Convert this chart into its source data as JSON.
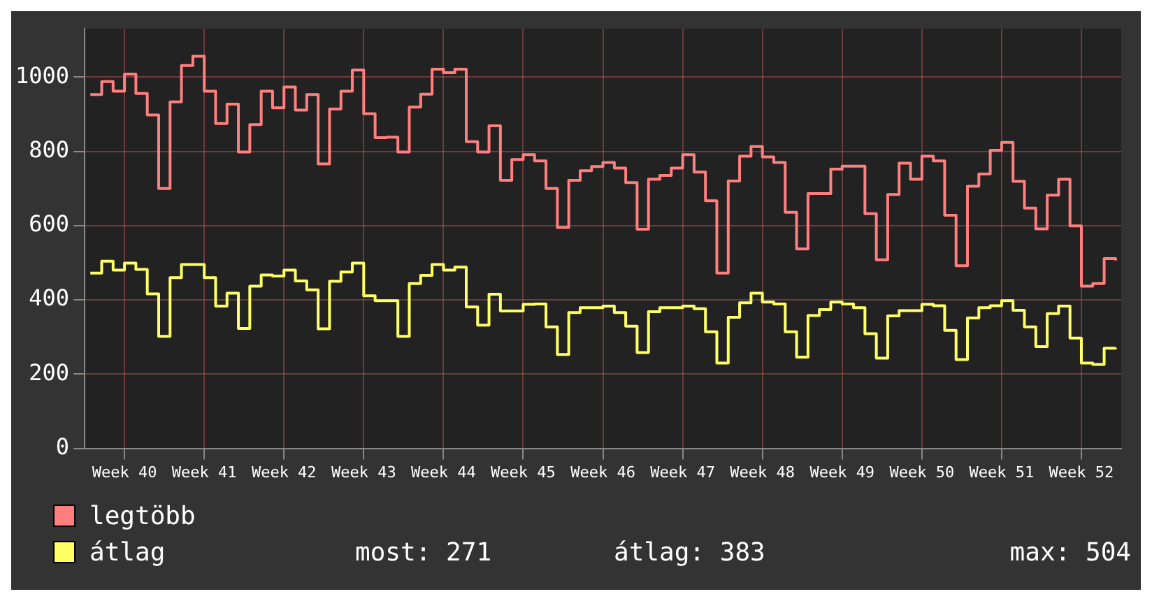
{
  "chart_data": {
    "type": "step",
    "categories": [
      null,
      null,
      null,
      "Week 40",
      null,
      null,
      null,
      null,
      null,
      null,
      "Week 41",
      null,
      null,
      null,
      null,
      null,
      null,
      "Week 42",
      null,
      null,
      null,
      null,
      null,
      null,
      "Week 43",
      null,
      null,
      null,
      null,
      null,
      null,
      "Week 44",
      null,
      null,
      null,
      null,
      null,
      null,
      "Week 45",
      null,
      null,
      null,
      null,
      null,
      null,
      "Week 46",
      null,
      null,
      null,
      null,
      null,
      null,
      "Week 47",
      null,
      null,
      null,
      null,
      null,
      null,
      "Week 48",
      null,
      null,
      null,
      null,
      null,
      null,
      "Week 49",
      null,
      null,
      null,
      null,
      null,
      null,
      "Week 50",
      null,
      null,
      null,
      null,
      null,
      null,
      "Week 51",
      null,
      null,
      null,
      null,
      null,
      null,
      "Week 52",
      null,
      null,
      null
    ],
    "series": [
      {
        "name": "legtöbb",
        "color": "#ff7f7f",
        "values": [
          953,
          988,
          962,
          1008,
          956,
          898,
          700,
          933,
          1031,
          1056,
          962,
          875,
          927,
          798,
          872,
          962,
          917,
          973,
          911,
          953,
          766,
          914,
          962,
          1019,
          901,
          837,
          838,
          798,
          919,
          954,
          1021,
          1012,
          1021,
          826,
          798,
          869,
          722,
          778,
          791,
          774,
          700,
          595,
          722,
          748,
          759,
          770,
          755,
          716,
          590,
          725,
          735,
          755,
          791,
          744,
          667,
          472,
          720,
          787,
          813,
          785,
          770,
          636,
          537,
          686,
          686,
          752,
          760,
          760,
          632,
          508,
          684,
          768,
          725,
          787,
          774,
          628,
          492,
          706,
          739,
          803,
          824,
          719,
          647,
          591,
          682,
          725,
          599,
          437,
          444,
          511,
          506
        ]
      },
      {
        "name": "átlag",
        "color": "#ffff66",
        "values": [
          472,
          504,
          480,
          499,
          482,
          416,
          302,
          460,
          495,
          495,
          460,
          383,
          418,
          323,
          437,
          467,
          464,
          480,
          451,
          427,
          322,
          450,
          475,
          499,
          411,
          398,
          398,
          302,
          444,
          466,
          495,
          480,
          488,
          381,
          332,
          415,
          370,
          370,
          388,
          389,
          327,
          253,
          366,
          379,
          379,
          383,
          366,
          329,
          258,
          368,
          379,
          379,
          383,
          376,
          314,
          230,
          353,
          392,
          418,
          394,
          389,
          314,
          246,
          358,
          374,
          394,
          389,
          379,
          309,
          243,
          357,
          371,
          371,
          388,
          384,
          318,
          239,
          351,
          379,
          384,
          398,
          372,
          327,
          274,
          363,
          383,
          297,
          230,
          226,
          270,
          271
        ]
      }
    ],
    "ylim": [
      0,
      1130
    ],
    "yticks": [
      0,
      200,
      400,
      600,
      800,
      1000
    ],
    "grid": true,
    "legend": "bottom",
    "annotations": [
      "most: 271",
      "átlag: 383",
      "max: 504"
    ]
  }
}
